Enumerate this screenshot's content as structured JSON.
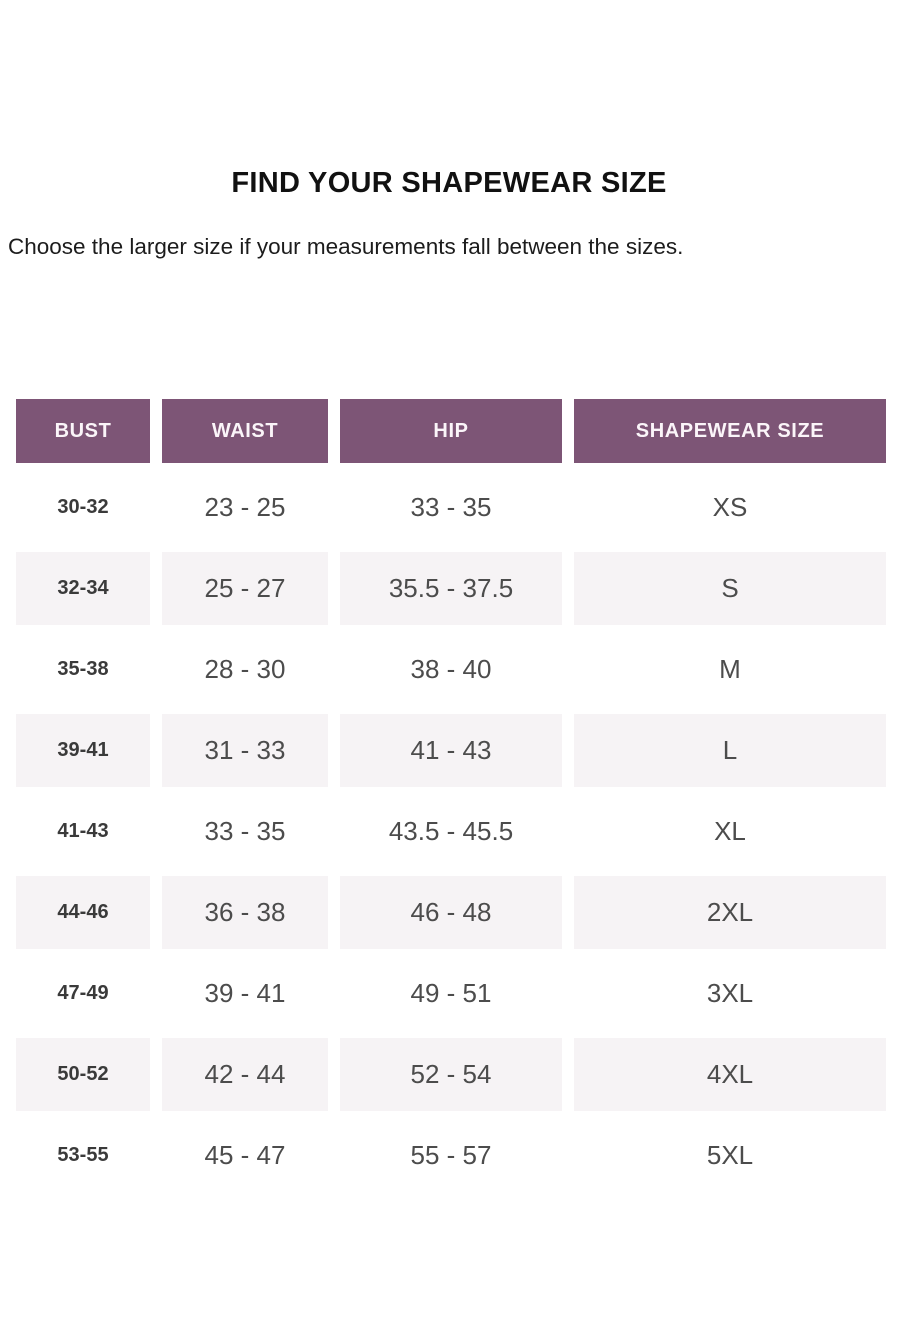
{
  "page": {
    "title": "FIND YOUR SHAPEWEAR SIZE",
    "subtitle": "Choose the larger size if your measurements fall between the sizes."
  },
  "size_chart": {
    "columns": [
      "BUST",
      "WAIST",
      "HIP",
      "SHAPEWEAR SIZE"
    ],
    "rows": [
      {
        "bust": "30-32",
        "waist": "23 - 25",
        "hip": "33 - 35",
        "size": "XS"
      },
      {
        "bust": "32-34",
        "waist": "25 - 27",
        "hip": "35.5 - 37.5",
        "size": "S"
      },
      {
        "bust": "35-38",
        "waist": "28 - 30",
        "hip": "38 - 40",
        "size": "M"
      },
      {
        "bust": "39-41",
        "waist": "31 - 33",
        "hip": "41 - 43",
        "size": "L"
      },
      {
        "bust": "41-43",
        "waist": "33 - 35",
        "hip": "43.5 - 45.5",
        "size": "XL"
      },
      {
        "bust": "44-46",
        "waist": "36 - 38",
        "hip": "46 - 48",
        "size": "2XL"
      },
      {
        "bust": "47-49",
        "waist": "39 - 41",
        "hip": "49 - 51",
        "size": "3XL"
      },
      {
        "bust": "50-52",
        "waist": "42 - 44",
        "hip": "52 - 54",
        "size": "4XL"
      },
      {
        "bust": "53-55",
        "waist": "45 - 47",
        "hip": "55 - 57",
        "size": "5XL"
      }
    ]
  },
  "colors": {
    "header_bg": "#7d5576",
    "header_text": "#fbf5f9",
    "shaded_row_bg": "#f6f3f5",
    "bust_text": "#3a3a3a",
    "data_text": "#4c4c4c",
    "title_text": "#111111"
  }
}
